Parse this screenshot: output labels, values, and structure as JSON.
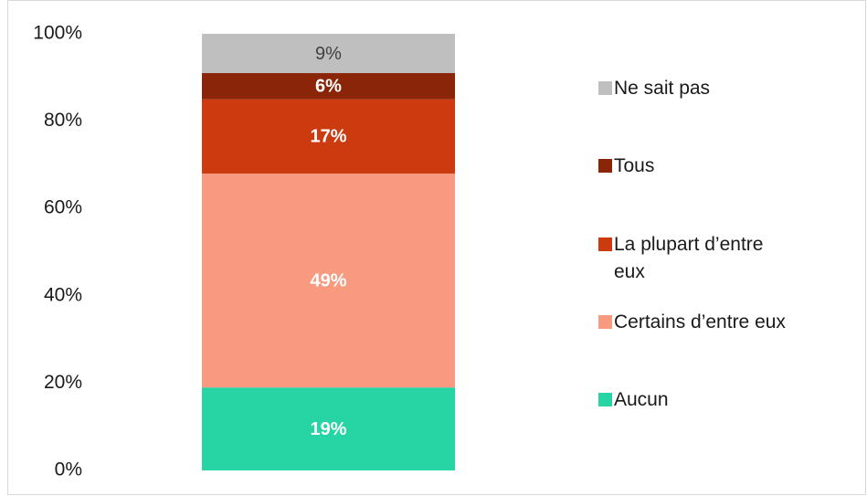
{
  "chart_data": {
    "type": "stacked_bar",
    "categories": [
      null
    ],
    "series": [
      {
        "name": "Aucun",
        "color": "#26d4a4",
        "label_color": "#ffffff",
        "values": [
          19
        ],
        "value_labels": [
          "19%"
        ]
      },
      {
        "name": "Certains d’entre eux",
        "color": "#f89a80",
        "label_color": "#ffffff",
        "values": [
          49
        ],
        "value_labels": [
          "49%"
        ]
      },
      {
        "name": "La plupart d’entre eux",
        "color": "#cc3a10",
        "label_color": "#ffffff",
        "values": [
          17
        ],
        "value_labels": [
          "17%"
        ]
      },
      {
        "name": "Tous",
        "color": "#8b2508",
        "label_color": "#ffffff",
        "values": [
          6
        ],
        "value_labels": [
          "6%"
        ]
      },
      {
        "name": "Ne sait pas",
        "color": "#bfbfbf",
        "label_color": "#404040",
        "values": [
          9
        ],
        "value_labels": [
          "9%"
        ]
      }
    ],
    "ylim": [
      0,
      100
    ],
    "yticks": [
      {
        "value": 0,
        "label": "0%"
      },
      {
        "value": 20,
        "label": "20%"
      },
      {
        "value": 40,
        "label": "40%"
      },
      {
        "value": 60,
        "label": "60%"
      },
      {
        "value": 80,
        "label": "80%"
      },
      {
        "value": 100,
        "label": "100%"
      }
    ],
    "grid": false,
    "legend": "right"
  }
}
